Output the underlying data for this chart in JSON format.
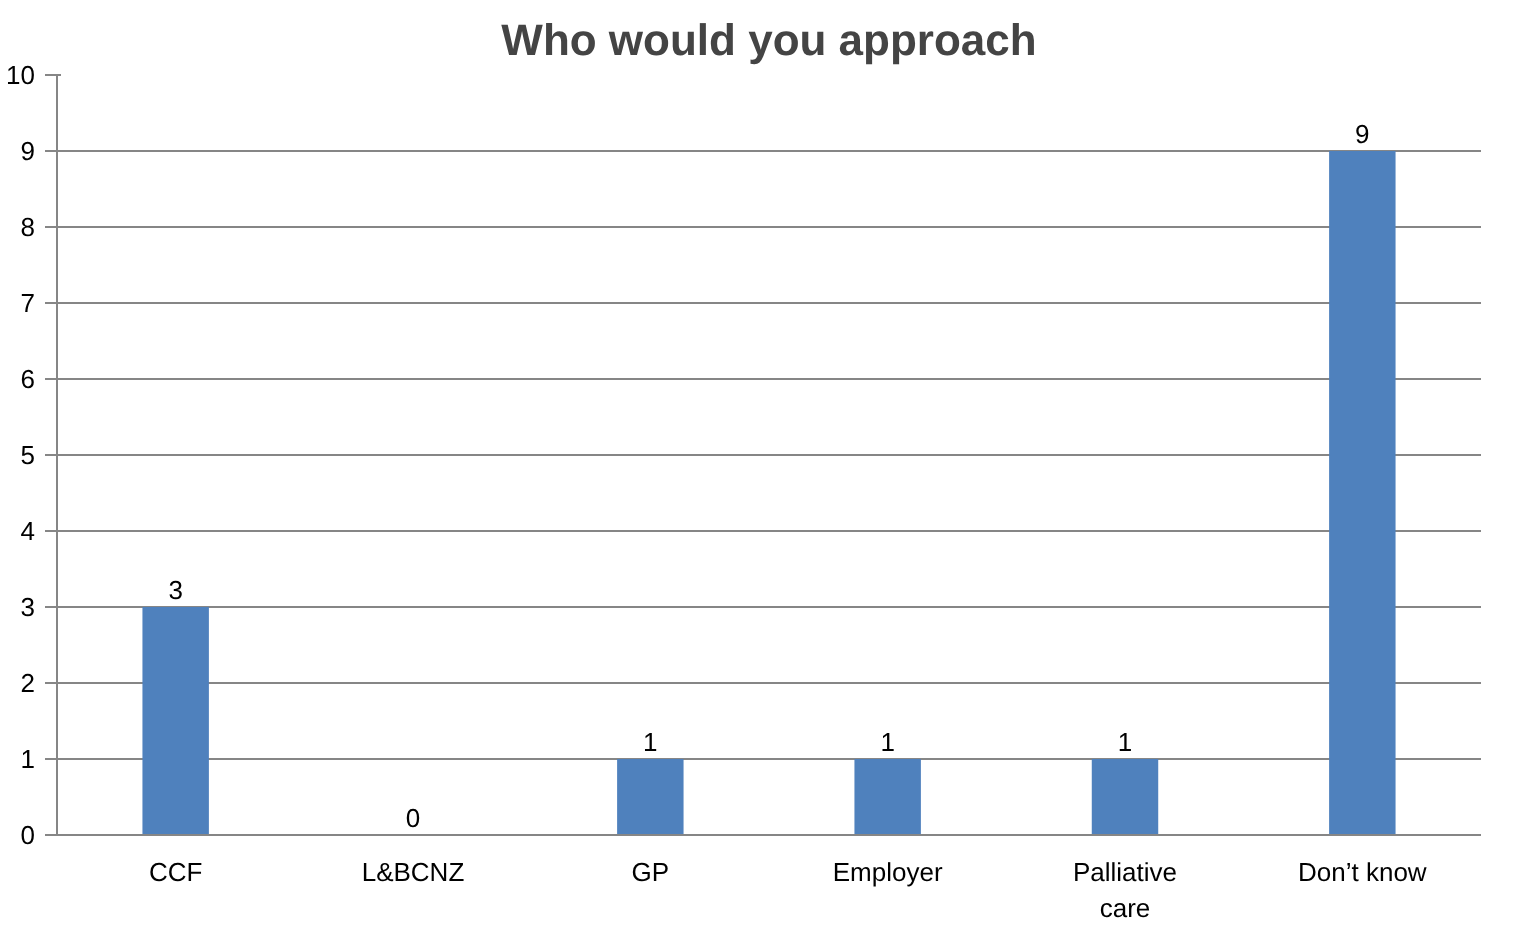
{
  "chart_data": {
    "type": "bar",
    "title": "Who would you approach",
    "categories": [
      "CCF",
      "L&BCNZ",
      "GP",
      "Employer",
      "Palliative care",
      "Don’t know"
    ],
    "values": [
      3,
      0,
      1,
      1,
      1,
      9
    ],
    "color": "#4f81bd",
    "ylim": [
      0,
      10
    ],
    "yticks": [
      0,
      1,
      2,
      3,
      4,
      5,
      6,
      7,
      8,
      9,
      10
    ],
    "grid": "y",
    "data_labels": true
  }
}
